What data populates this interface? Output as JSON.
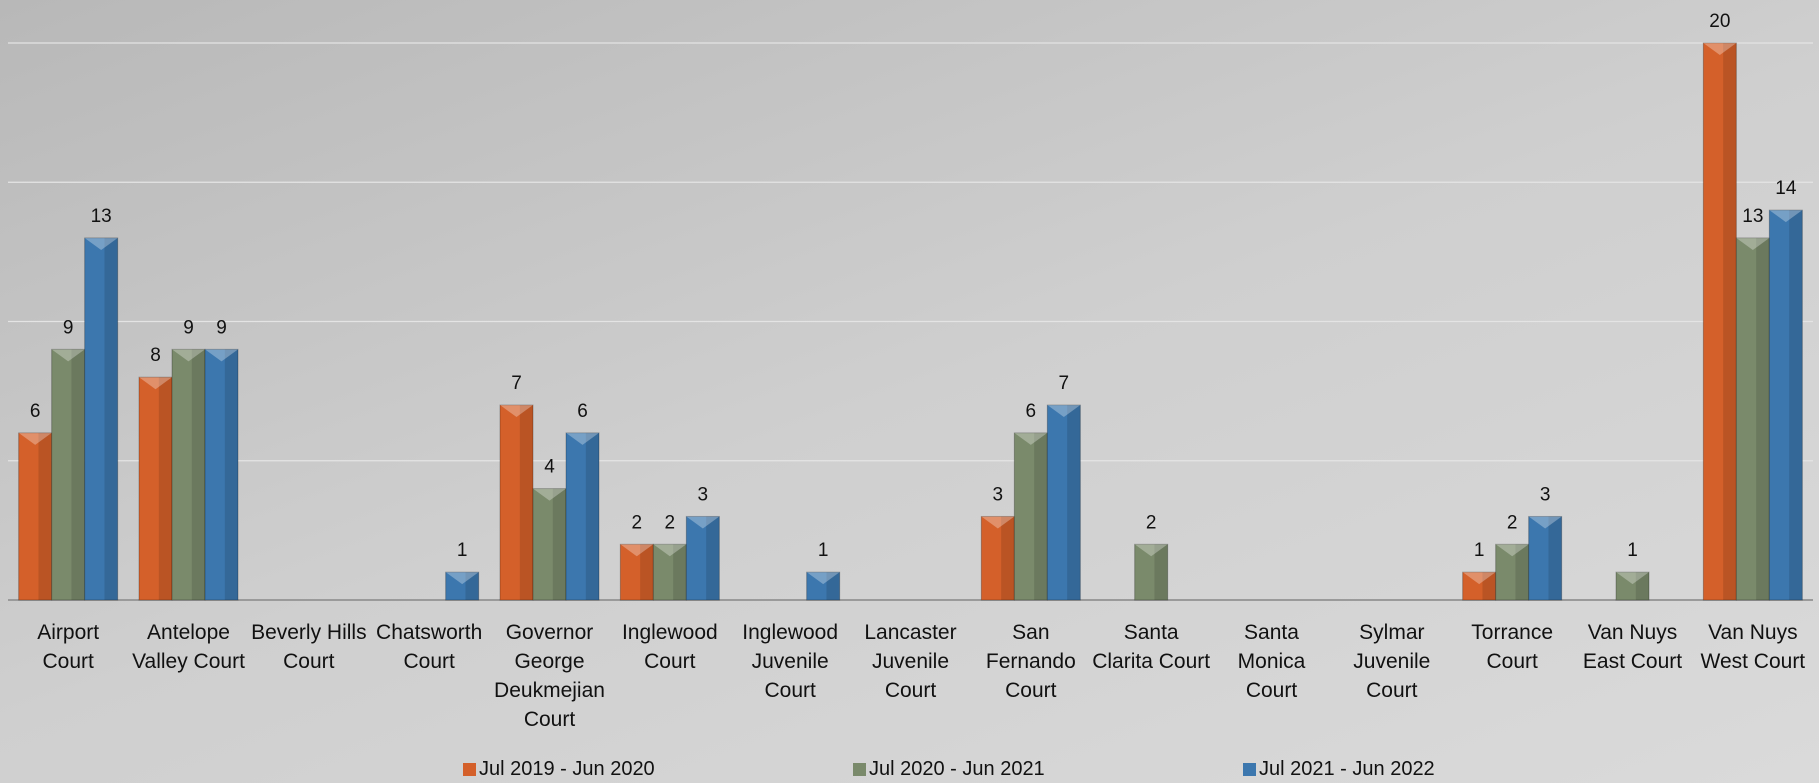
{
  "chart_data": {
    "type": "bar",
    "categories": [
      "Airport Court",
      "Antelope Valley Court",
      "Beverly Hills Court",
      "Chatsworth Court",
      "Governor George Deukmejian Court",
      "Inglewood Court",
      "Inglewood Juvenile Court",
      "Lancaster Juvenile Court",
      "San Fernando Court",
      "Santa Clarita Court",
      "Santa Monica Court",
      "Sylmar Juvenile Court",
      "Torrance Court",
      "Van Nuys East Court",
      "Van Nuys West Court"
    ],
    "series": [
      {
        "name": "Jul 2019 - Jun 2020",
        "color": "#d4602a",
        "values": [
          6,
          8,
          null,
          null,
          7,
          2,
          null,
          null,
          3,
          null,
          null,
          null,
          1,
          null,
          20
        ]
      },
      {
        "name": "Jul 2020 - Jun 2021",
        "color": "#7a8a6b",
        "values": [
          9,
          9,
          null,
          null,
          4,
          2,
          null,
          null,
          6,
          2,
          null,
          null,
          2,
          1,
          13
        ]
      },
      {
        "name": "Jul 2021 - Jun 2022",
        "color": "#3c77ae",
        "values": [
          13,
          9,
          null,
          1,
          6,
          3,
          1,
          null,
          7,
          null,
          null,
          null,
          3,
          null,
          14
        ]
      }
    ],
    "ylim": [
      0,
      20
    ],
    "yticks": [
      0,
      5,
      10,
      15,
      20
    ],
    "grid": true,
    "legend": "bottom"
  }
}
